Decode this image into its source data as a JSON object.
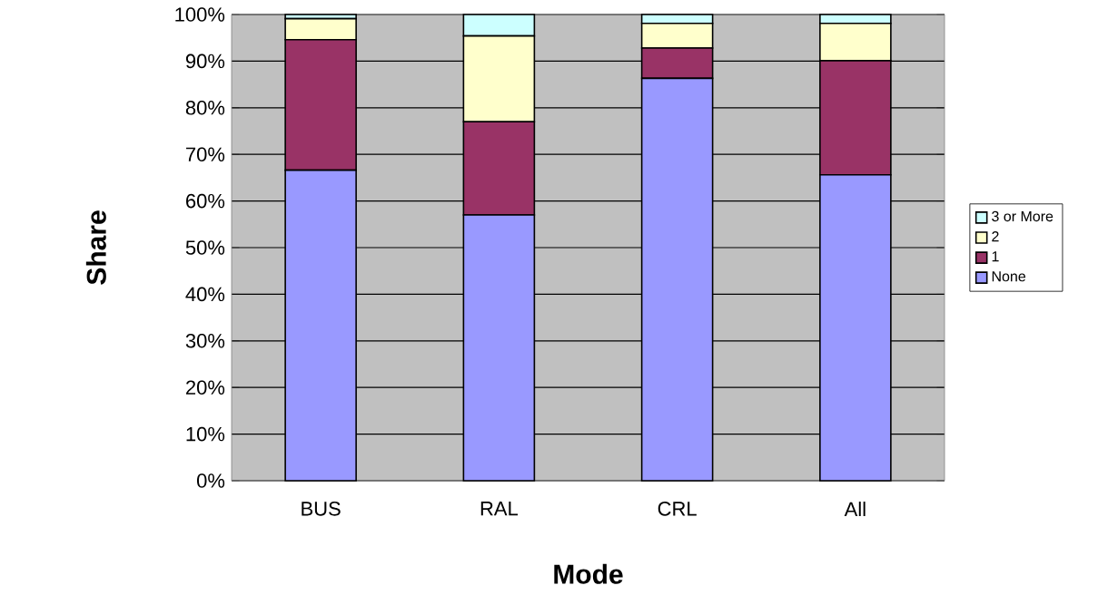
{
  "chart_data": {
    "type": "bar",
    "stacked": true,
    "xlabel": "Mode",
    "ylabel": "Share",
    "categories": [
      "BUS",
      "RAL",
      "CRL",
      "All"
    ],
    "series": [
      {
        "name": "None",
        "color": "#9999ff",
        "values": [
          66.6,
          57.0,
          86.3,
          65.6
        ]
      },
      {
        "name": "1",
        "color": "#993366",
        "values": [
          28.0,
          20.0,
          6.5,
          24.5
        ]
      },
      {
        "name": "2",
        "color": "#ffffcc",
        "values": [
          4.5,
          18.4,
          5.3,
          8.0
        ]
      },
      {
        "name": "3 or More",
        "color": "#ccffff",
        "values": [
          0.9,
          4.6,
          1.9,
          1.9
        ]
      }
    ],
    "ylim": [
      0,
      100
    ],
    "yticks": [
      {
        "value": 0,
        "label": "0%"
      },
      {
        "value": 10,
        "label": "10%"
      },
      {
        "value": 20,
        "label": "20%"
      },
      {
        "value": 30,
        "label": "30%"
      },
      {
        "value": 40,
        "label": "40%"
      },
      {
        "value": 50,
        "label": "50%"
      },
      {
        "value": 60,
        "label": "60%"
      },
      {
        "value": 70,
        "label": "70%"
      },
      {
        "value": 80,
        "label": "80%"
      },
      {
        "value": 90,
        "label": "90%"
      },
      {
        "value": 100,
        "label": "100%"
      }
    ],
    "grid": "y",
    "legend": "right"
  }
}
